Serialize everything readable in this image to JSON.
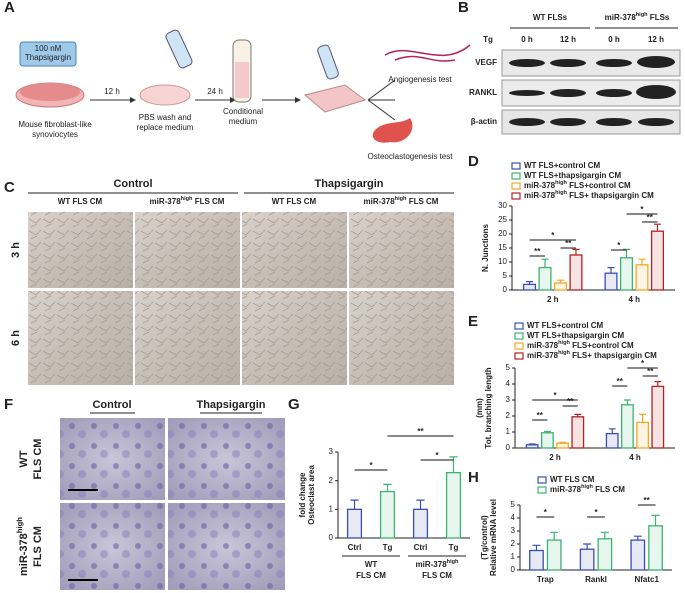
{
  "panel_labels": [
    "A",
    "B",
    "C",
    "D",
    "E",
    "F",
    "G",
    "H"
  ],
  "panel_a": {
    "reagent": [
      "100 nM",
      "Thapsigargin"
    ],
    "step1_time": "12 h",
    "step2_time": "24 h",
    "cells": [
      "Mouse fibroblast-like",
      "synoviocytes"
    ],
    "wash": [
      "PBS wash and",
      "replace medium"
    ],
    "medium": [
      "Conditional",
      "medium"
    ],
    "test1": "Angiogenesis test",
    "test2": "Osteoclastogenesis test"
  },
  "panel_b": {
    "treatment": "Tg",
    "groups": [
      "WT FLSs",
      "miR-378high FLSs"
    ],
    "times": [
      "0 h",
      "12 h",
      "0 h",
      "12 h"
    ],
    "proteins": [
      "VEGF",
      "RANKL",
      "β-actin"
    ]
  },
  "panel_c": {
    "conditions": [
      "Control",
      "Thapsigargin"
    ],
    "media": [
      "WT FLS  CM",
      "miR-378high FLS CM",
      "WT FLS CM",
      "miR-378high FLS CM"
    ],
    "times": [
      "3 h",
      "6 h"
    ]
  },
  "panel_f": {
    "conditions": [
      "Control",
      "Thapsigargin"
    ],
    "rows": [
      [
        "WT",
        "FLS CM"
      ],
      [
        "miR-378high",
        "FLS CM"
      ]
    ]
  },
  "chart_data": [
    {
      "type": "bar",
      "y_label": [
        "N. Junctions"
      ],
      "categories": [
        "2 h",
        "4 h"
      ],
      "ylim": [
        0,
        30
      ],
      "yticks": [
        0,
        5,
        10,
        15,
        20,
        25,
        30
      ],
      "series": [
        {
          "name": "WT FLS+control CM",
          "color": "#3a4fb0",
          "values": [
            2,
            6
          ],
          "errors": [
            1,
            2
          ]
        },
        {
          "name": "WT FLS+thapsigargin CM",
          "color": "#3cb371",
          "values": [
            8,
            11.5
          ],
          "errors": [
            3,
            3
          ]
        },
        {
          "name": "miR-378high FLS+control CM",
          "color": "#f5a623",
          "values": [
            2.5,
            9
          ],
          "errors": [
            1,
            2
          ]
        },
        {
          "name": "miR-378high FLS+ thapsigargin CM",
          "color": "#b22222",
          "values": [
            12.5,
            21
          ],
          "errors": [
            2,
            2.5
          ]
        }
      ],
      "annotations": [
        "**",
        "*",
        "**",
        "*",
        "*",
        "**"
      ]
    },
    {
      "type": "bar",
      "y_label": [
        "Tot. branching length",
        "(mm)"
      ],
      "categories": [
        "2 h",
        "4 h"
      ],
      "ylim": [
        0,
        5
      ],
      "yticks": [
        0,
        1,
        2,
        3,
        4,
        5
      ],
      "series": [
        {
          "name": "WT FLS+control CM",
          "color": "#3a4fb0",
          "values": [
            0.2,
            0.9
          ],
          "errors": [
            0.05,
            0.3
          ]
        },
        {
          "name": "WT FLS+thapsigargin CM",
          "color": "#3cb371",
          "values": [
            0.95,
            2.7
          ],
          "errors": [
            0.08,
            0.3
          ]
        },
        {
          "name": "miR-378high FLS+control CM",
          "color": "#f5a623",
          "values": [
            0.3,
            1.6
          ],
          "errors": [
            0.05,
            0.5
          ]
        },
        {
          "name": "miR-378high FLS+ thapsigargin CM",
          "color": "#b22222",
          "values": [
            1.95,
            3.85
          ],
          "errors": [
            0.15,
            0.3
          ]
        }
      ],
      "annotations": [
        "**",
        "*",
        "**",
        "**",
        "*",
        "**"
      ]
    },
    {
      "type": "bar",
      "y_label": [
        "Osteoclast area",
        "fold change"
      ],
      "categories": [
        "Ctrl",
        "Tg",
        "Ctrl",
        "Tg"
      ],
      "groups": [
        [
          "WT",
          "FLS CM"
        ],
        [
          "miR-378high",
          "FLS CM"
        ]
      ],
      "ylim": [
        0,
        3
      ],
      "yticks": [
        0,
        1,
        2,
        3
      ],
      "values": [
        1.0,
        1.62,
        1.0,
        2.28
      ],
      "errors": [
        0.32,
        0.25,
        0.32,
        0.55
      ],
      "colors": [
        "#3a4fb0",
        "#3cb371",
        "#3a4fb0",
        "#3cb371"
      ],
      "annotations": [
        "*",
        "**",
        "*"
      ]
    },
    {
      "type": "bar",
      "y_label": [
        "Relative mRNA level",
        "(Tg/control)"
      ],
      "categories": [
        "Trap",
        "Rankl",
        "Nfatc1"
      ],
      "ylim": [
        0,
        5
      ],
      "yticks": [
        0,
        1,
        2,
        3,
        4,
        5
      ],
      "series": [
        {
          "name": "WT FLS CM",
          "color": "#3a4fb0",
          "values": [
            1.5,
            1.6,
            2.3
          ],
          "errors": [
            0.4,
            0.4,
            0.3
          ]
        },
        {
          "name": "miR-378high FLS CM",
          "color": "#3cb371",
          "values": [
            2.3,
            2.4,
            3.4
          ],
          "errors": [
            0.6,
            0.5,
            0.8
          ]
        }
      ],
      "annotations": [
        "*",
        "*",
        "**"
      ]
    }
  ]
}
